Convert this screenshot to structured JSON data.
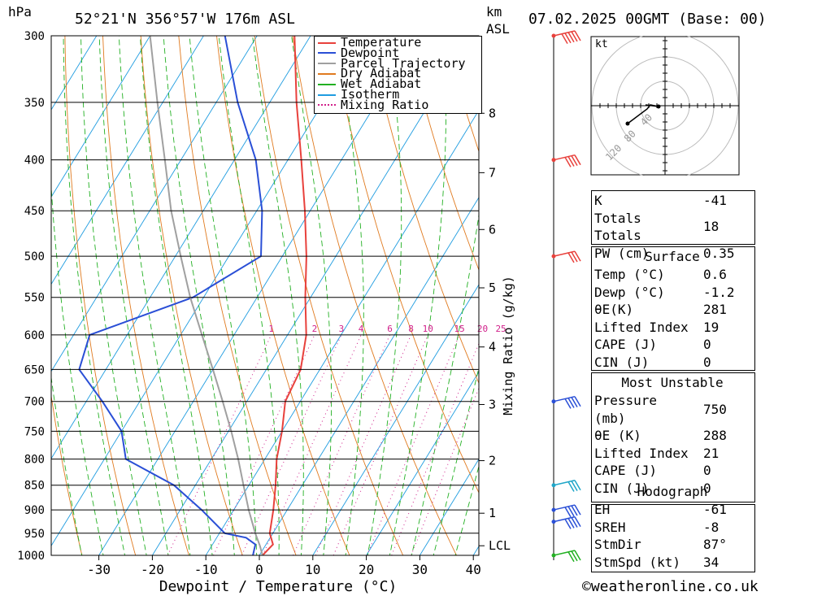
{
  "header": {
    "pressure_unit": "hPa",
    "location": "52°21'N  356°57'W  176m  ASL",
    "km_unit": "km",
    "asl_unit": "ASL",
    "datetime": "07.02.2025  00GMT  (Base: 00)"
  },
  "legend": [
    {
      "label": "Temperature",
      "color": "#e8413c",
      "style": "solid"
    },
    {
      "label": "Dewpoint",
      "color": "#2a4fd6",
      "style": "solid"
    },
    {
      "label": "Parcel Trajectory",
      "color": "#a0a0a0",
      "style": "solid"
    },
    {
      "label": "Dry Adiabat",
      "color": "#e07a1f",
      "style": "solid"
    },
    {
      "label": "Wet Adiabat",
      "color": "#22b022",
      "style": "solid"
    },
    {
      "label": "Isotherm",
      "color": "#1f9ce0",
      "style": "solid"
    },
    {
      "label": "Mixing Ratio",
      "color": "#d0208a",
      "style": "dotted"
    }
  ],
  "chart_data": {
    "type": "line",
    "title": "",
    "xlabel": "Dewpoint / Temperature (°C)",
    "ylabel": "hPa",
    "xlim": [
      -40,
      40
    ],
    "ylim": [
      1000,
      300
    ],
    "y_scale": "log",
    "x_ticks": [
      "-30",
      "-20",
      "-10",
      "0",
      "10",
      "20",
      "30",
      "40"
    ],
    "pressure_levels": [
      "300",
      "350",
      "400",
      "450",
      "500",
      "550",
      "600",
      "650",
      "700",
      "750",
      "800",
      "850",
      "900",
      "950",
      "1000"
    ],
    "altitude_axis": {
      "label_top": "km",
      "label_second": "ASL",
      "ticks": [
        {
          "km": "8",
          "p": 359
        },
        {
          "km": "7",
          "p": 412
        },
        {
          "km": "6",
          "p": 470
        },
        {
          "km": "5",
          "p": 538
        },
        {
          "km": "4",
          "p": 617
        },
        {
          "km": "3",
          "p": 705
        },
        {
          "km": "2",
          "p": 803
        },
        {
          "km": "1",
          "p": 907
        },
        {
          "km": "LCL",
          "p": 978
        }
      ]
    },
    "mixing_ratio_axis_label": "Mixing Ratio (g/kg)",
    "mixing_ratio_labels": [
      "1",
      "2",
      "3",
      "4",
      "6",
      "8",
      "10",
      "15",
      "20",
      "25"
    ],
    "series": [
      {
        "name": "Temperature",
        "color": "#e8413c",
        "points": [
          [
            1000,
            0.6
          ],
          [
            975,
            1.3
          ],
          [
            950,
            -0.6
          ],
          [
            900,
            -2.6
          ],
          [
            850,
            -5.0
          ],
          [
            800,
            -7.8
          ],
          [
            750,
            -10.0
          ],
          [
            700,
            -12.8
          ],
          [
            650,
            -13.6
          ],
          [
            600,
            -16.5
          ],
          [
            550,
            -21.0
          ],
          [
            500,
            -25.5
          ],
          [
            450,
            -31.0
          ],
          [
            400,
            -37.5
          ],
          [
            350,
            -45.0
          ],
          [
            300,
            -53.0
          ]
        ]
      },
      {
        "name": "Dewpoint",
        "color": "#2a4fd6",
        "points": [
          [
            1000,
            -1.2
          ],
          [
            975,
            -2.0
          ],
          [
            960,
            -4.5
          ],
          [
            950,
            -9.0
          ],
          [
            900,
            -16.0
          ],
          [
            850,
            -24.0
          ],
          [
            800,
            -36.0
          ],
          [
            750,
            -40.0
          ],
          [
            700,
            -47.0
          ],
          [
            650,
            -55.0
          ],
          [
            600,
            -57.0
          ],
          [
            550,
            -42.0
          ],
          [
            500,
            -34.0
          ],
          [
            450,
            -39.0
          ],
          [
            400,
            -46.0
          ],
          [
            350,
            -56.0
          ],
          [
            300,
            -66.0
          ]
        ]
      },
      {
        "name": "Parcel Trajectory",
        "color": "#a0a0a0",
        "points": [
          [
            1000,
            0.6
          ],
          [
            978,
            -1.0
          ],
          [
            950,
            -3.3
          ],
          [
            900,
            -7.2
          ],
          [
            850,
            -11.0
          ],
          [
            800,
            -15.0
          ],
          [
            750,
            -19.5
          ],
          [
            700,
            -24.5
          ],
          [
            650,
            -30.0
          ],
          [
            600,
            -36.0
          ],
          [
            550,
            -42.5
          ],
          [
            500,
            -49.0
          ],
          [
            450,
            -56.0
          ],
          [
            400,
            -63.0
          ],
          [
            350,
            -71.0
          ],
          [
            300,
            -80.0
          ]
        ]
      }
    ],
    "wind_barbs": [
      {
        "p": 300,
        "color": "#e8413c",
        "speed_kt": 45
      },
      {
        "p": 400,
        "color": "#e8413c",
        "speed_kt": 40
      },
      {
        "p": 500,
        "color": "#e8413c",
        "speed_kt": 30
      },
      {
        "p": 700,
        "color": "#2a4fd6",
        "speed_kt": 35
      },
      {
        "p": 850,
        "color": "#1fa6c8",
        "speed_kt": 30
      },
      {
        "p": 900,
        "color": "#2a4fd6",
        "speed_kt": 40
      },
      {
        "p": 925,
        "color": "#2a4fd6",
        "speed_kt": 35
      },
      {
        "p": 1000,
        "color": "#22b022",
        "speed_kt": 25
      }
    ]
  },
  "hodograph": {
    "unit_label": "kt",
    "ring_labels": [
      "40",
      "80",
      "120"
    ]
  },
  "indices": {
    "basic": [
      {
        "label": "K",
        "value": "-41"
      },
      {
        "label": "Totals Totals",
        "value": "18"
      },
      {
        "label": "PW (cm)",
        "value": "0.35"
      }
    ],
    "surface_title": "Surface",
    "surface": [
      {
        "label": "Temp (°C)",
        "value": "0.6"
      },
      {
        "label": "Dewp (°C)",
        "value": "-1.2"
      },
      {
        "label": "θE(K)",
        "value": "281"
      },
      {
        "label": "Lifted Index",
        "value": "19"
      },
      {
        "label": "CAPE (J)",
        "value": "0"
      },
      {
        "label": "CIN (J)",
        "value": "0"
      }
    ],
    "unstable_title": "Most Unstable",
    "unstable": [
      {
        "label": "Pressure (mb)",
        "value": "750"
      },
      {
        "label": "θE (K)",
        "value": "288"
      },
      {
        "label": "Lifted Index",
        "value": "21"
      },
      {
        "label": "CAPE (J)",
        "value": "0"
      },
      {
        "label": "CIN (J)",
        "value": "0"
      }
    ],
    "hodo_title": "Hodograph",
    "hodo": [
      {
        "label": "EH",
        "value": "-61"
      },
      {
        "label": "SREH",
        "value": "-8"
      },
      {
        "label": "StmDir",
        "value": "87°"
      },
      {
        "label": "StmSpd (kt)",
        "value": "34"
      }
    ]
  },
  "footer": {
    "copyright": "©weatheronline.co.uk"
  }
}
